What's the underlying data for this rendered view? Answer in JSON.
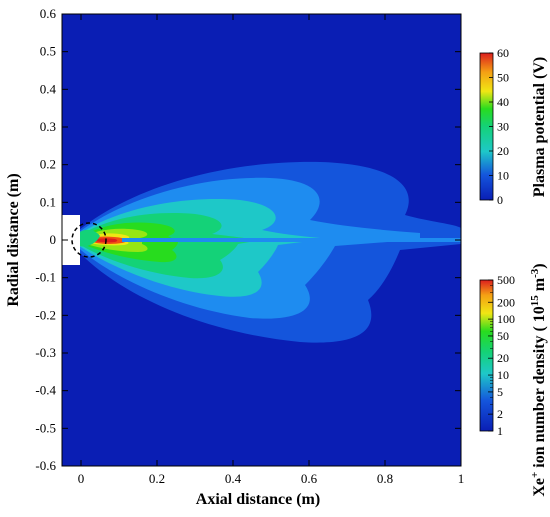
{
  "chart_data": {
    "type": "heatmap",
    "title": "",
    "xlabel": "Axial distance (m)",
    "ylabel": "Radial distance (m)",
    "xlim": [
      -0.05,
      1.0
    ],
    "ylim": [
      -0.6,
      0.6
    ],
    "x_ticks": [
      0,
      0.2,
      0.4,
      0.6,
      0.8,
      1
    ],
    "x_tick_labels": [
      "0",
      "0.2",
      "0.4",
      "0.6",
      "0.8",
      "1"
    ],
    "y_ticks": [
      0.6,
      0.5,
      0.4,
      0.3,
      0.2,
      0.1,
      0,
      -0.1,
      -0.2,
      -0.3,
      -0.4,
      -0.5,
      -0.6
    ],
    "y_tick_labels": [
      "0.6",
      "0.5",
      "0.4",
      "0.3",
      "0.2",
      "0.1",
      "0",
      "-0.1",
      "-0.2",
      "-0.3",
      "-0.4",
      "-0.5",
      "-0.6"
    ],
    "grid": false,
    "upper_half": {
      "quantity": "Plasma potential (V)",
      "colorbar_label": "Plasma potential (V)",
      "scale": "linear",
      "range": [
        0,
        60
      ],
      "ticks": [
        0,
        10,
        20,
        30,
        40,
        50,
        60
      ],
      "tick_labels": [
        "0",
        "10",
        "20",
        "30",
        "40",
        "50",
        "60"
      ]
    },
    "lower_half": {
      "quantity": "Xe+ ion number density (10^15 m^-3)",
      "colorbar_label_prefix": "Xe",
      "colorbar_label_sup1": "+",
      "colorbar_label_mid": " ion number density ( 10",
      "colorbar_label_sup2": "15",
      "colorbar_label_mid2": " m",
      "colorbar_label_sup3": "-3",
      "colorbar_label_end": ")",
      "scale": "log",
      "range": [
        1,
        500
      ],
      "ticks": [
        1,
        2,
        5,
        10,
        20,
        50,
        100,
        200,
        500
      ],
      "tick_labels": [
        "1",
        "2",
        "5",
        "10",
        "20",
        "50",
        "100",
        "200",
        "500"
      ]
    },
    "colors": {
      "background_level": "#0a1eb4",
      "colormap": [
        "#0a1eb4",
        "#1455dc",
        "#1e8cf0",
        "#1ec8c8",
        "#14d278",
        "#28dc1e",
        "#96e614",
        "#f0e614",
        "#f5a014",
        "#f05014",
        "#dc1e1e"
      ]
    }
  }
}
